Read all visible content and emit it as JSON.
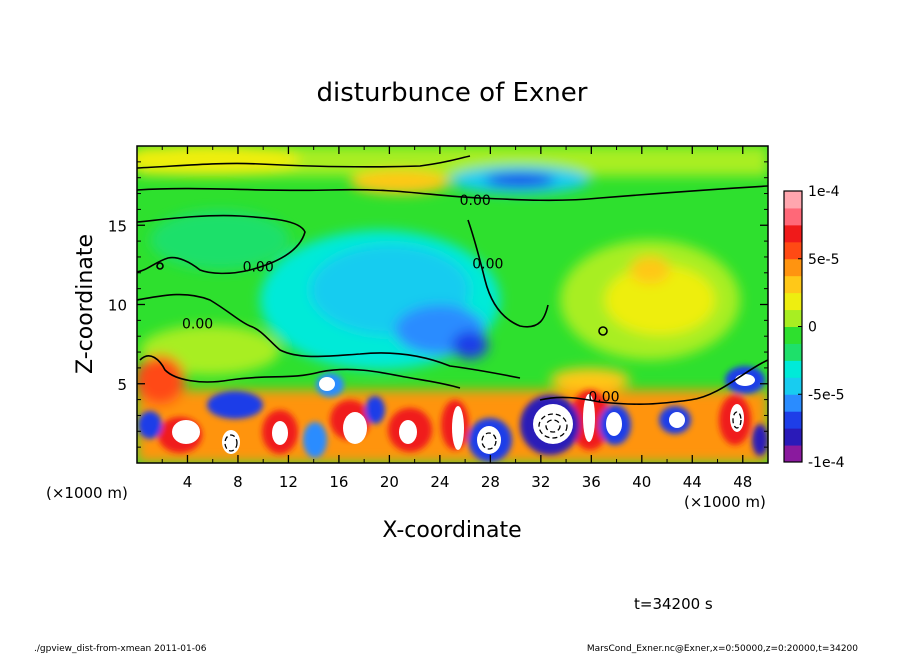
{
  "chart_data": {
    "type": "heatmap",
    "title": "disturbunce of Exner",
    "xlabel": "X-coordinate",
    "ylabel": "Z-coordinate",
    "x_unit_left": "(×1000 m)",
    "x_unit_right": "(×1000 m)",
    "xlim": [
      0,
      50
    ],
    "ylim": [
      0,
      20
    ],
    "x_ticks": [
      4,
      8,
      12,
      16,
      20,
      24,
      28,
      32,
      36,
      40,
      44,
      48
    ],
    "y_ticks": [
      5,
      10,
      15
    ],
    "colorbar": {
      "range": [
        -0.0001,
        0.0001
      ],
      "tick_labels": [
        "1e-4",
        "5e-5",
        "0",
        "-5e-5",
        "-1e-4"
      ],
      "tick_values": [
        0.0001,
        5e-05,
        0,
        -5e-05,
        -0.0001
      ],
      "colors": [
        "#8a1a9e",
        "#2a1ab8",
        "#1e3ee8",
        "#2a8cff",
        "#18ccf0",
        "#00ead8",
        "#1ee06a",
        "#2ee02e",
        "#a8ee22",
        "#eeee10",
        "#ffc818",
        "#ff9410",
        "#ff4a14",
        "#f01a1a",
        "#ff6878",
        "#ffa6ae"
      ]
    },
    "contour_labels": [
      {
        "text": "0.00",
        "x": 26.8,
        "z": 16.6
      },
      {
        "text": "0.00",
        "x": 9.6,
        "z": 12.4
      },
      {
        "text": "0.00",
        "x": 4.8,
        "z": 8.8
      },
      {
        "text": "0.00",
        "x": 27.8,
        "z": 12.6
      },
      {
        "text": "0.00",
        "x": 37.0,
        "z": 4.2
      }
    ],
    "time_label": "t=34200 s",
    "footer_left": "./gpview_dist-from-xmean  2011-01-06",
    "footer_right": "MarsCond_Exner.nc@Exner,x=0:50000,z=0:20000,t=34200"
  }
}
